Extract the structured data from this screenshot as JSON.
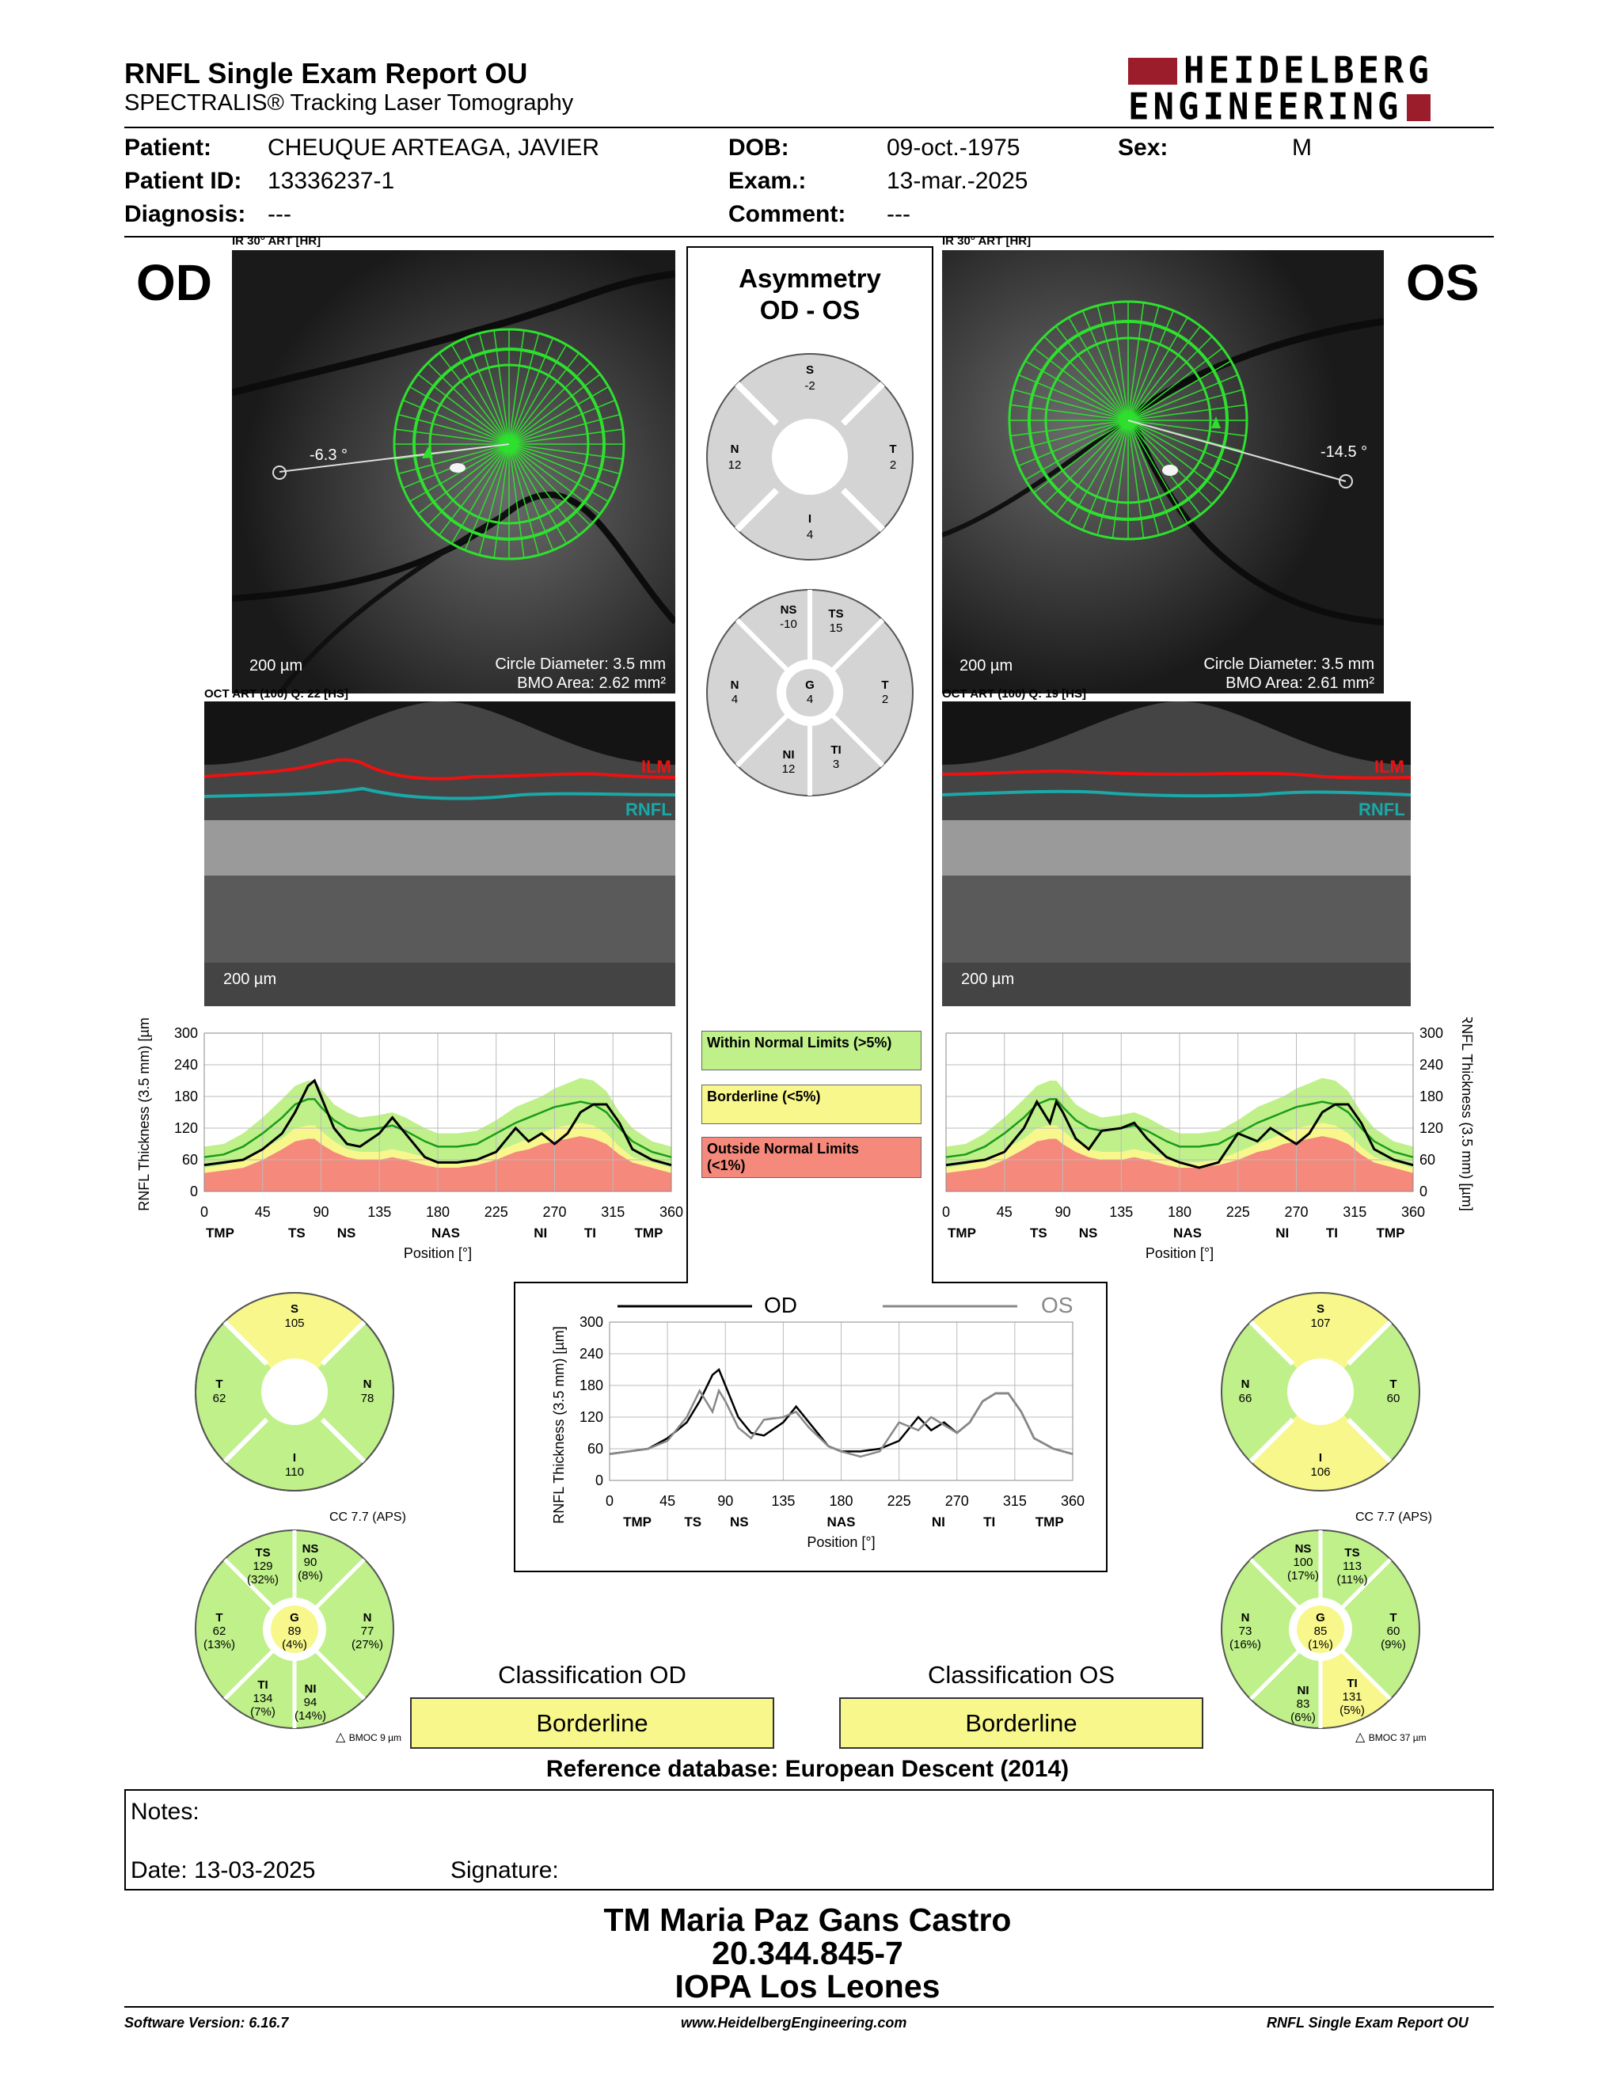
{
  "report": {
    "title": "RNFL Single Exam Report OU",
    "subtitle": "SPECTRALIS® Tracking Laser Tomography",
    "logo_line1": "HEIDELBERG",
    "logo_line2": "ENGINEERING"
  },
  "patient": {
    "patient_label": "Patient:",
    "patient_value": "CHEUQUE ARTEAGA, JAVIER",
    "dob_label": "DOB:",
    "dob_value": "09-oct.-1975",
    "sex_label": "Sex:",
    "sex_value": "M",
    "id_label": "Patient ID:",
    "id_value": "13336237-1",
    "exam_label": "Exam.:",
    "exam_value": "13-mar.-2025",
    "diagnosis_label": "Diagnosis:",
    "diagnosis_value": "---",
    "comment_label": "Comment:",
    "comment_value": "---"
  },
  "od": {
    "eye_label": "OD",
    "ir_caption": "IR 30° ART [HR]",
    "angle": "-6.3 °",
    "scale": "200 µm",
    "circle_diameter": "Circle Diameter: 3.5 mm",
    "bmo_area": "BMO Area: 2.62 mm²",
    "oct_caption": "OCT ART (100) Q: 22 [HS]",
    "ilm": "ILM",
    "rnfl": "RNFL",
    "oct_scale": "200 µm",
    "sectors4": {
      "S": "105",
      "T": "62",
      "N": "78",
      "I": "110"
    },
    "sectors4_colors": {
      "S": "#f8f78c",
      "T": "#bff08a",
      "N": "#bff08a",
      "I": "#bff08a"
    },
    "cc": "CC 7.7 (APS)",
    "sectors6": {
      "TS": {
        "label": "TS",
        "value": "129",
        "pct": "(32%)",
        "color": "#bff08a"
      },
      "NS": {
        "label": "NS",
        "value": "90",
        "pct": "(8%)",
        "color": "#bff08a"
      },
      "T": {
        "label": "T",
        "value": "62",
        "pct": "(13%)",
        "color": "#bff08a"
      },
      "N": {
        "label": "N",
        "value": "77",
        "pct": "(27%)",
        "color": "#bff08a"
      },
      "TI": {
        "label": "TI",
        "value": "134",
        "pct": "(7%)",
        "color": "#bff08a"
      },
      "NI": {
        "label": "NI",
        "value": "94",
        "pct": "(14%)",
        "color": "#bff08a"
      },
      "G": {
        "label": "G",
        "value": "89",
        "pct": "(4%)",
        "color": "#f8f78c"
      }
    },
    "bmoc": "BMOC 9 µm",
    "classification_title": "Classification OD",
    "classification": "Borderline"
  },
  "os": {
    "eye_label": "OS",
    "ir_caption": "IR 30° ART [HR]",
    "angle": "-14.5 °",
    "scale": "200 µm",
    "circle_diameter": "Circle Diameter: 3.5 mm",
    "bmo_area": "BMO Area: 2.61 mm²",
    "oct_caption": "OCT ART (100) Q: 19 [HS]",
    "ilm": "ILM",
    "rnfl": "RNFL",
    "oct_scale": "200 µm",
    "sectors4": {
      "S": "107",
      "T": "60",
      "N": "66",
      "I": "106"
    },
    "sectors4_colors": {
      "S": "#f8f78c",
      "T": "#bff08a",
      "N": "#bff08a",
      "I": "#f8f78c"
    },
    "cc": "CC 7.7 (APS)",
    "sectors6": {
      "NS": {
        "label": "NS",
        "value": "100",
        "pct": "(17%)",
        "color": "#bff08a"
      },
      "TS": {
        "label": "TS",
        "value": "113",
        "pct": "(11%)",
        "color": "#bff08a"
      },
      "N": {
        "label": "N",
        "value": "73",
        "pct": "(16%)",
        "color": "#bff08a"
      },
      "T": {
        "label": "T",
        "value": "60",
        "pct": "(9%)",
        "color": "#bff08a"
      },
      "NI": {
        "label": "NI",
        "value": "83",
        "pct": "(6%)",
        "color": "#bff08a"
      },
      "TI": {
        "label": "TI",
        "value": "131",
        "pct": "(5%)",
        "color": "#f8f78c"
      },
      "G": {
        "label": "G",
        "value": "85",
        "pct": "(1%)",
        "color": "#f8f78c"
      }
    },
    "bmoc": "BMOC 37 µm",
    "classification_title": "Classification OS",
    "classification": "Borderline"
  },
  "asymmetry": {
    "title1": "Asymmetry",
    "title2": "OD - OS",
    "quad": {
      "S": "-2",
      "T": "2",
      "N": "12",
      "I": "4"
    },
    "sector": {
      "NS": "-10",
      "TS": "15",
      "N": "4",
      "G": "4",
      "T": "2",
      "NI": "12",
      "TI": "3"
    }
  },
  "legend": {
    "wnl": "Within Normal Limits (>5%)",
    "borderline": "Borderline (<5%)",
    "onl_1": "Outside Normal Limits",
    "onl_2": "(<1%)",
    "colors": {
      "wnl": "#bff08a",
      "borderline": "#f8f78c",
      "onl": "#f5897c"
    }
  },
  "chart_data": [
    {
      "type": "line",
      "name": "od-thickness",
      "title": "",
      "xlabel": "Position [°]",
      "ylabel": "RNFL Thickness (3.5 mm) [µm]",
      "xlim": [
        0,
        360
      ],
      "ylim": [
        0,
        300
      ],
      "xticks": [
        "0",
        "45",
        "90",
        "135",
        "180",
        "225",
        "270",
        "315",
        "360"
      ],
      "yticks": [
        "0",
        "60",
        "120",
        "180",
        "240",
        "300"
      ],
      "sectors": [
        "TMP",
        "TS",
        "NS",
        "NAS",
        "NI",
        "TI",
        "TMP"
      ],
      "x": [
        0,
        15,
        30,
        45,
        60,
        70,
        80,
        85,
        90,
        100,
        110,
        120,
        135,
        145,
        155,
        170,
        180,
        195,
        210,
        225,
        240,
        250,
        260,
        270,
        280,
        290,
        300,
        310,
        320,
        330,
        345,
        360
      ],
      "measured": [
        50,
        55,
        60,
        80,
        110,
        150,
        200,
        210,
        180,
        120,
        90,
        85,
        110,
        140,
        110,
        65,
        55,
        55,
        60,
        75,
        120,
        95,
        110,
        90,
        110,
        150,
        165,
        165,
        130,
        80,
        60,
        50
      ],
      "normal_mean": [
        65,
        70,
        85,
        110,
        140,
        165,
        175,
        175,
        160,
        135,
        120,
        115,
        120,
        125,
        115,
        95,
        85,
        85,
        90,
        110,
        130,
        140,
        150,
        160,
        165,
        170,
        165,
        150,
        120,
        95,
        75,
        65
      ],
      "band_p95": [
        85,
        90,
        110,
        140,
        175,
        200,
        210,
        210,
        195,
        165,
        150,
        140,
        145,
        150,
        140,
        120,
        110,
        110,
        115,
        135,
        160,
        170,
        180,
        195,
        205,
        215,
        210,
        190,
        150,
        120,
        95,
        85
      ],
      "band_p5": [
        45,
        50,
        60,
        80,
        100,
        120,
        125,
        125,
        115,
        95,
        80,
        75,
        75,
        80,
        75,
        65,
        55,
        55,
        60,
        75,
        90,
        100,
        110,
        120,
        125,
        130,
        125,
        110,
        85,
        65,
        55,
        45
      ],
      "band_p1": [
        35,
        40,
        45,
        60,
        80,
        95,
        100,
        100,
        90,
        75,
        65,
        60,
        60,
        65,
        60,
        50,
        45,
        45,
        50,
        60,
        75,
        80,
        90,
        95,
        100,
        105,
        100,
        90,
        70,
        55,
        45,
        35
      ]
    },
    {
      "type": "line",
      "name": "os-thickness",
      "title": "",
      "xlabel": "Position [°]",
      "ylabel": "RNFL Thickness (3.5 mm) [µm]",
      "xlim": [
        0,
        360
      ],
      "ylim": [
        0,
        300
      ],
      "xticks": [
        "0",
        "45",
        "90",
        "135",
        "180",
        "225",
        "270",
        "315",
        "360"
      ],
      "yticks": [
        "0",
        "60",
        "120",
        "180",
        "240",
        "300"
      ],
      "sectors": [
        "TMP",
        "TS",
        "NS",
        "NAS",
        "NI",
        "TI",
        "TMP"
      ],
      "x": [
        0,
        15,
        30,
        45,
        60,
        70,
        80,
        85,
        90,
        100,
        110,
        120,
        135,
        145,
        155,
        170,
        180,
        195,
        210,
        225,
        240,
        250,
        260,
        270,
        280,
        290,
        300,
        310,
        320,
        330,
        345,
        360
      ],
      "measured": [
        50,
        55,
        60,
        75,
        120,
        170,
        130,
        170,
        150,
        100,
        80,
        115,
        120,
        130,
        100,
        65,
        55,
        45,
        55,
        110,
        95,
        120,
        105,
        90,
        110,
        150,
        165,
        165,
        130,
        80,
        60,
        50
      ],
      "normal_mean": [
        65,
        70,
        85,
        110,
        140,
        165,
        175,
        175,
        160,
        135,
        120,
        115,
        120,
        125,
        115,
        95,
        85,
        85,
        90,
        110,
        130,
        140,
        150,
        160,
        165,
        170,
        165,
        150,
        120,
        95,
        75,
        65
      ],
      "band_p95": [
        85,
        90,
        110,
        140,
        175,
        200,
        210,
        210,
        195,
        165,
        150,
        140,
        145,
        150,
        140,
        120,
        110,
        110,
        115,
        135,
        160,
        170,
        180,
        195,
        205,
        215,
        210,
        190,
        150,
        120,
        95,
        85
      ],
      "band_p5": [
        45,
        50,
        60,
        80,
        100,
        120,
        125,
        125,
        115,
        95,
        80,
        75,
        75,
        80,
        75,
        65,
        55,
        55,
        60,
        75,
        90,
        100,
        110,
        120,
        125,
        130,
        125,
        110,
        85,
        65,
        55,
        45
      ],
      "band_p1": [
        35,
        40,
        45,
        60,
        80,
        95,
        100,
        100,
        90,
        75,
        65,
        60,
        60,
        65,
        60,
        50,
        45,
        45,
        50,
        60,
        75,
        80,
        90,
        95,
        100,
        105,
        100,
        90,
        70,
        55,
        45,
        35
      ]
    },
    {
      "type": "line",
      "name": "od-os-comparison",
      "title": "",
      "xlabel": "Position [°]",
      "ylabel": "RNFL Thickness (3.5 mm) [µm]",
      "xlim": [
        0,
        360
      ],
      "ylim": [
        0,
        300
      ],
      "xticks": [
        "0",
        "45",
        "90",
        "135",
        "180",
        "225",
        "270",
        "315",
        "360"
      ],
      "yticks": [
        "0",
        "60",
        "120",
        "180",
        "240",
        "300"
      ],
      "sectors": [
        "TMP",
        "TS",
        "NS",
        "NAS",
        "NI",
        "TI",
        "TMP"
      ],
      "series": [
        {
          "name": "OD",
          "color": "#000000",
          "x": [
            0,
            15,
            30,
            45,
            60,
            70,
            80,
            85,
            90,
            100,
            110,
            120,
            135,
            145,
            155,
            170,
            180,
            195,
            210,
            225,
            240,
            250,
            260,
            270,
            280,
            290,
            300,
            310,
            320,
            330,
            345,
            360
          ],
          "values": [
            50,
            55,
            60,
            80,
            110,
            150,
            200,
            210,
            180,
            120,
            90,
            85,
            110,
            140,
            110,
            65,
            55,
            55,
            60,
            75,
            120,
            95,
            110,
            90,
            110,
            150,
            165,
            165,
            130,
            80,
            60,
            50
          ]
        },
        {
          "name": "OS",
          "color": "#888888",
          "x": [
            0,
            15,
            30,
            45,
            60,
            70,
            80,
            85,
            90,
            100,
            110,
            120,
            135,
            145,
            155,
            170,
            180,
            195,
            210,
            225,
            240,
            250,
            260,
            270,
            280,
            290,
            300,
            310,
            320,
            330,
            345,
            360
          ],
          "values": [
            50,
            55,
            60,
            75,
            120,
            170,
            130,
            170,
            150,
            100,
            80,
            115,
            120,
            130,
            100,
            65,
            55,
            45,
            55,
            110,
            95,
            120,
            105,
            90,
            110,
            150,
            165,
            165,
            130,
            80,
            60,
            50
          ]
        }
      ]
    }
  ],
  "classification": {
    "reference_db": "Reference database: European Descent (2014)"
  },
  "notes": {
    "notes_label": "Notes:",
    "date_label": "Date: 13-03-2025",
    "signature_label": "Signature:"
  },
  "signature": {
    "name": "TM Maria Paz Gans Castro",
    "id": "20.344.845-7",
    "place": "IOPA Los Leones"
  },
  "footer": {
    "left": "Software Version: 6.16.7",
    "center": "www.HeidelbergEngineering.com",
    "right": "RNFL Single Exam Report OU"
  }
}
